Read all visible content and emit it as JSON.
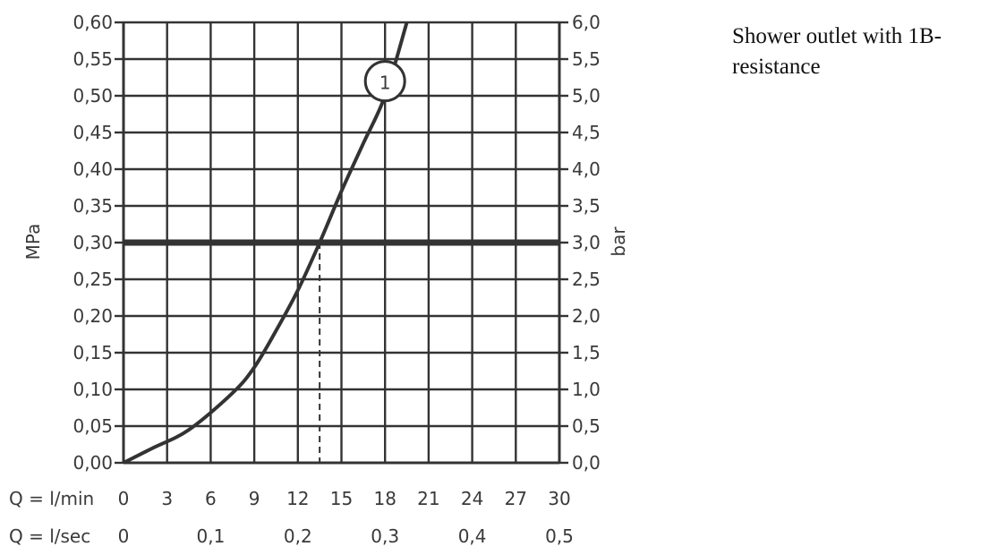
{
  "caption_line1": "Shower outlet with 1B-",
  "caption_line2": "resistance",
  "chart_data": {
    "type": "line",
    "ylabel_left": "MPa",
    "ylabel_right": "bar",
    "x_label_lmin": "Q = l/min",
    "x_label_lsec": "Q = l/sec",
    "xlim": [
      0,
      30
    ],
    "ylim": [
      0,
      0.6
    ],
    "grid": true,
    "x_ticks_lmin": [
      {
        "v": 0,
        "t": "0"
      },
      {
        "v": 3,
        "t": "3"
      },
      {
        "v": 6,
        "t": "6"
      },
      {
        "v": 9,
        "t": "9"
      },
      {
        "v": 12,
        "t": "12"
      },
      {
        "v": 15,
        "t": "15"
      },
      {
        "v": 18,
        "t": "18"
      },
      {
        "v": 21,
        "t": "21"
      },
      {
        "v": 24,
        "t": "24"
      },
      {
        "v": 27,
        "t": "27"
      },
      {
        "v": 30,
        "t": "30"
      }
    ],
    "x_ticks_lsec": [
      {
        "v": 0,
        "t": "0"
      },
      {
        "v": 6,
        "t": "0,1"
      },
      {
        "v": 12,
        "t": "0,2"
      },
      {
        "v": 18,
        "t": "0,3"
      },
      {
        "v": 24,
        "t": "0,4"
      },
      {
        "v": 30,
        "t": "0,5"
      }
    ],
    "y_ticks_left": [
      "0,00",
      "0,05",
      "0,10",
      "0,15",
      "0,20",
      "0,25",
      "0,30",
      "0,35",
      "0,40",
      "0,45",
      "0,50",
      "0,55",
      "0,60"
    ],
    "y_ticks_right": [
      "0,0",
      "0,5",
      "1,0",
      "1,5",
      "2,0",
      "2,5",
      "3,0",
      "3,5",
      "4,0",
      "4,5",
      "5,0",
      "5,5",
      "6,0"
    ],
    "reference_line": {
      "y": 0.3,
      "x_intersect": 13.5
    },
    "series": [
      {
        "name": "1",
        "x": [
          0,
          2,
          4.5,
          7.5,
          9,
          10.5,
          12,
          13.5,
          15,
          16.5,
          18,
          19.5
        ],
        "y": [
          0,
          0.02,
          0.045,
          0.095,
          0.13,
          0.18,
          0.235,
          0.3,
          0.37,
          0.435,
          0.5,
          0.6
        ]
      }
    ],
    "series_marker": {
      "label": "1",
      "x": 18,
      "y": 0.52
    }
  }
}
